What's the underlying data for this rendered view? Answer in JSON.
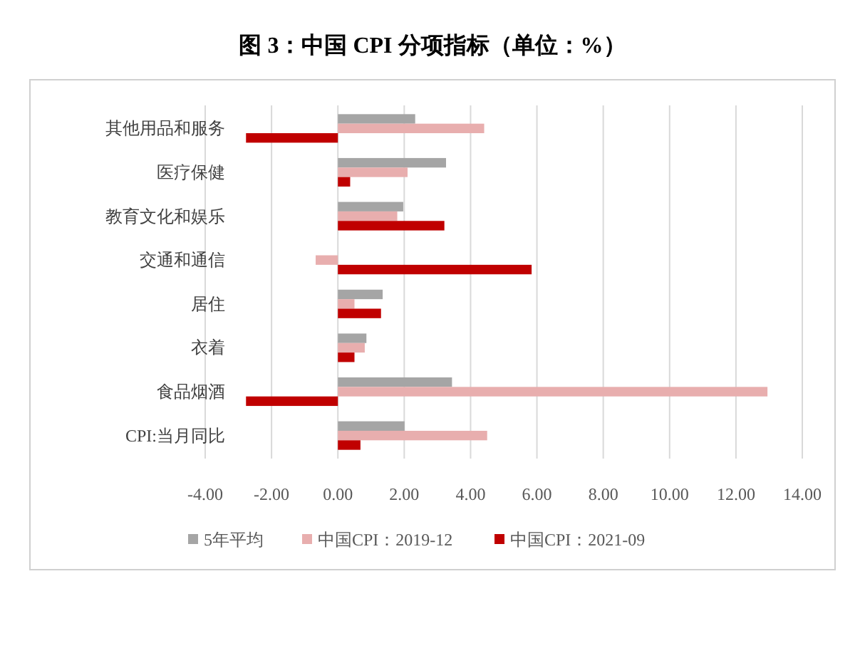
{
  "chart_data": {
    "type": "bar",
    "orientation": "horizontal",
    "title": "图 3：中国 CPI 分项指标（单位：%）",
    "categories": [
      "其他用品和服务",
      "医疗保健",
      "教育文化和娱乐",
      "交通和通信",
      "居住",
      "衣着",
      "食品烟酒",
      "CPI:当月同比"
    ],
    "series": [
      {
        "name": "5年平均",
        "color": "#a5a5a5",
        "values": [
          2.33,
          3.26,
          1.97,
          null,
          1.35,
          0.86,
          3.44,
          2.01
        ]
      },
      {
        "name": "中国CPI：2019-12",
        "color": "#e8aeae",
        "values": [
          4.41,
          2.1,
          1.79,
          -0.67,
          0.5,
          0.81,
          12.95,
          4.5
        ]
      },
      {
        "name": "中国CPI：2021-09",
        "color": "#c00000",
        "values": [
          -2.77,
          0.37,
          3.21,
          5.84,
          1.3,
          0.5,
          -2.77,
          0.68
        ]
      }
    ],
    "xlim": [
      -4,
      14
    ],
    "xticks": [
      {
        "value": -4,
        "label": "-4.00"
      },
      {
        "value": -2,
        "label": "-2.00"
      },
      {
        "value": 0,
        "label": "0.00"
      },
      {
        "value": 2,
        "label": "2.00"
      },
      {
        "value": 4,
        "label": "4.00"
      },
      {
        "value": 6,
        "label": "6.00"
      },
      {
        "value": 8,
        "label": "8.00"
      },
      {
        "value": 10,
        "label": "10.00"
      },
      {
        "value": 12,
        "label": "12.00"
      },
      {
        "value": 14,
        "label": "14.00"
      }
    ],
    "grid": "x",
    "legend": "bottom"
  }
}
